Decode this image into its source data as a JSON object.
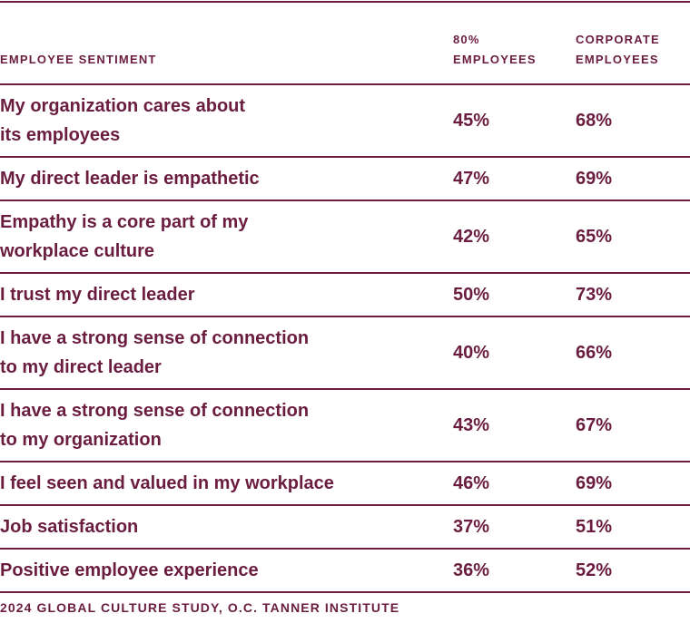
{
  "table": {
    "headers": [
      "EMPLOYEE SENTIMENT",
      "80% EMPLOYEES",
      "CORPORATE EMPLOYEES"
    ],
    "header_lines": {
      "col2": [
        "80%",
        "EMPLOYEES"
      ],
      "col3": [
        "CORPORATE",
        "EMPLOYEES"
      ]
    },
    "rows": [
      {
        "sentiment_lines": [
          "My organization cares about",
          "its employees"
        ],
        "employees_80": "45%",
        "corporate": "68%"
      },
      {
        "sentiment_lines": [
          "My direct leader is empathetic"
        ],
        "employees_80": "47%",
        "corporate": "69%"
      },
      {
        "sentiment_lines": [
          "Empathy is a core part of my",
          "workplace culture"
        ],
        "employees_80": "42%",
        "corporate": "65%"
      },
      {
        "sentiment_lines": [
          "I trust my direct leader"
        ],
        "employees_80": "50%",
        "corporate": "73%"
      },
      {
        "sentiment_lines": [
          "I have a strong sense of connection",
          "to my direct leader"
        ],
        "employees_80": "40%",
        "corporate": "66%"
      },
      {
        "sentiment_lines": [
          "I have a strong sense of connection",
          "to my organization"
        ],
        "employees_80": "43%",
        "corporate": "67%"
      },
      {
        "sentiment_lines": [
          "I feel seen and valued in my workplace"
        ],
        "employees_80": "46%",
        "corporate": "69%"
      },
      {
        "sentiment_lines": [
          "Job satisfaction"
        ],
        "employees_80": "37%",
        "corporate": "51%"
      },
      {
        "sentiment_lines": [
          "Positive employee experience"
        ],
        "employees_80": "36%",
        "corporate": "52%"
      }
    ]
  },
  "source": "2024 GLOBAL CULTURE STUDY, O.C. TANNER INSTITUTE",
  "colors": {
    "brand": "#6b1d3f",
    "background": "#ffffff"
  }
}
